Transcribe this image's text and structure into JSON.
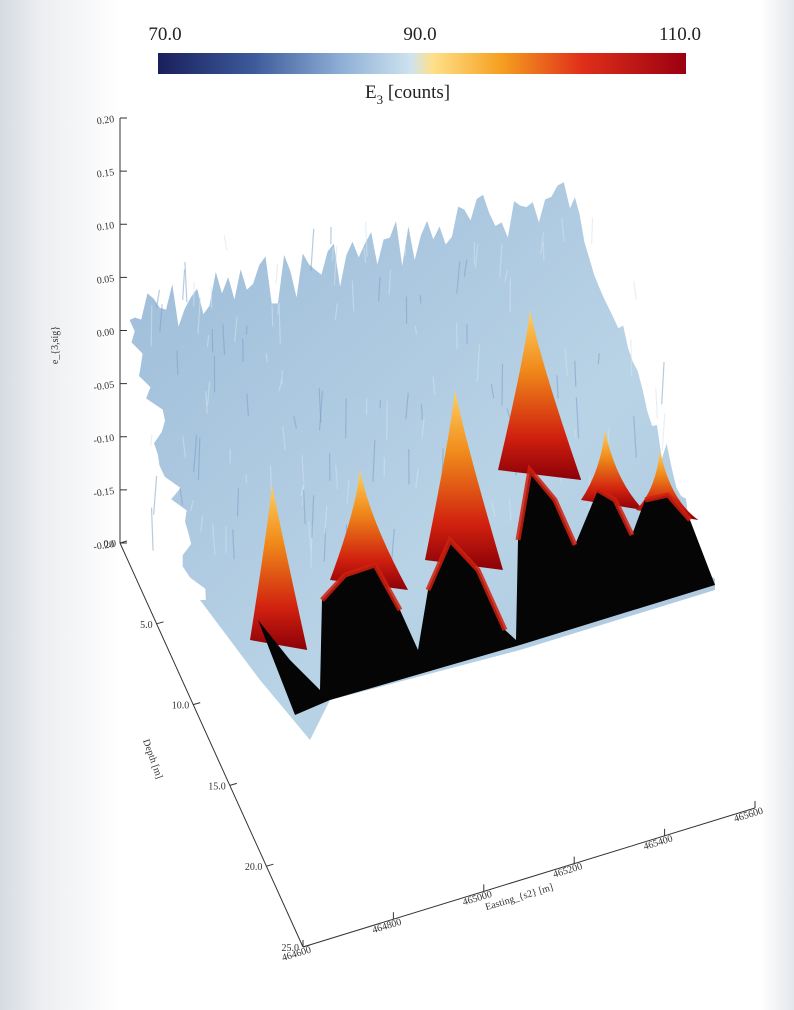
{
  "colorbar": {
    "tick_labels": [
      "70.0",
      "90.0",
      "110.0"
    ],
    "title_main": "E",
    "title_sub": "3",
    "title_rest": " [counts]",
    "stops": [
      "#1a1f5c",
      "#3c5a9a",
      "#8fb0d6",
      "#cfe3ef",
      "#ffe08a",
      "#f5a020",
      "#e0301a",
      "#9b0010"
    ]
  },
  "chart_data": {
    "type": "surface",
    "colorbar_range": [
      70.0,
      110.0
    ],
    "z_axis": {
      "label": "e_{3,sig}",
      "ticks": [
        "0.20",
        "0.15",
        "0.10",
        "0.05",
        "0.00",
        "-0.05",
        "-0.10",
        "-0.15",
        "-0.20"
      ]
    },
    "y_axis": {
      "label": "Depth [m]",
      "ticks": [
        "0.0",
        "5.0",
        "10.0",
        "15.0",
        "20.0",
        "25.0"
      ]
    },
    "x_axis": {
      "label": "Easting_{s2} [m]",
      "ticks": [
        "464600",
        "464800",
        "465000",
        "465200",
        "465400",
        "465600"
      ]
    },
    "peaks": [
      {
        "easting": 464700,
        "value": 110
      },
      {
        "easting": 464850,
        "value": 105
      },
      {
        "easting": 465050,
        "value": 110
      },
      {
        "easting": 465300,
        "value": 110
      },
      {
        "easting": 465480,
        "value": 104
      },
      {
        "easting": 465590,
        "value": 103
      }
    ]
  }
}
